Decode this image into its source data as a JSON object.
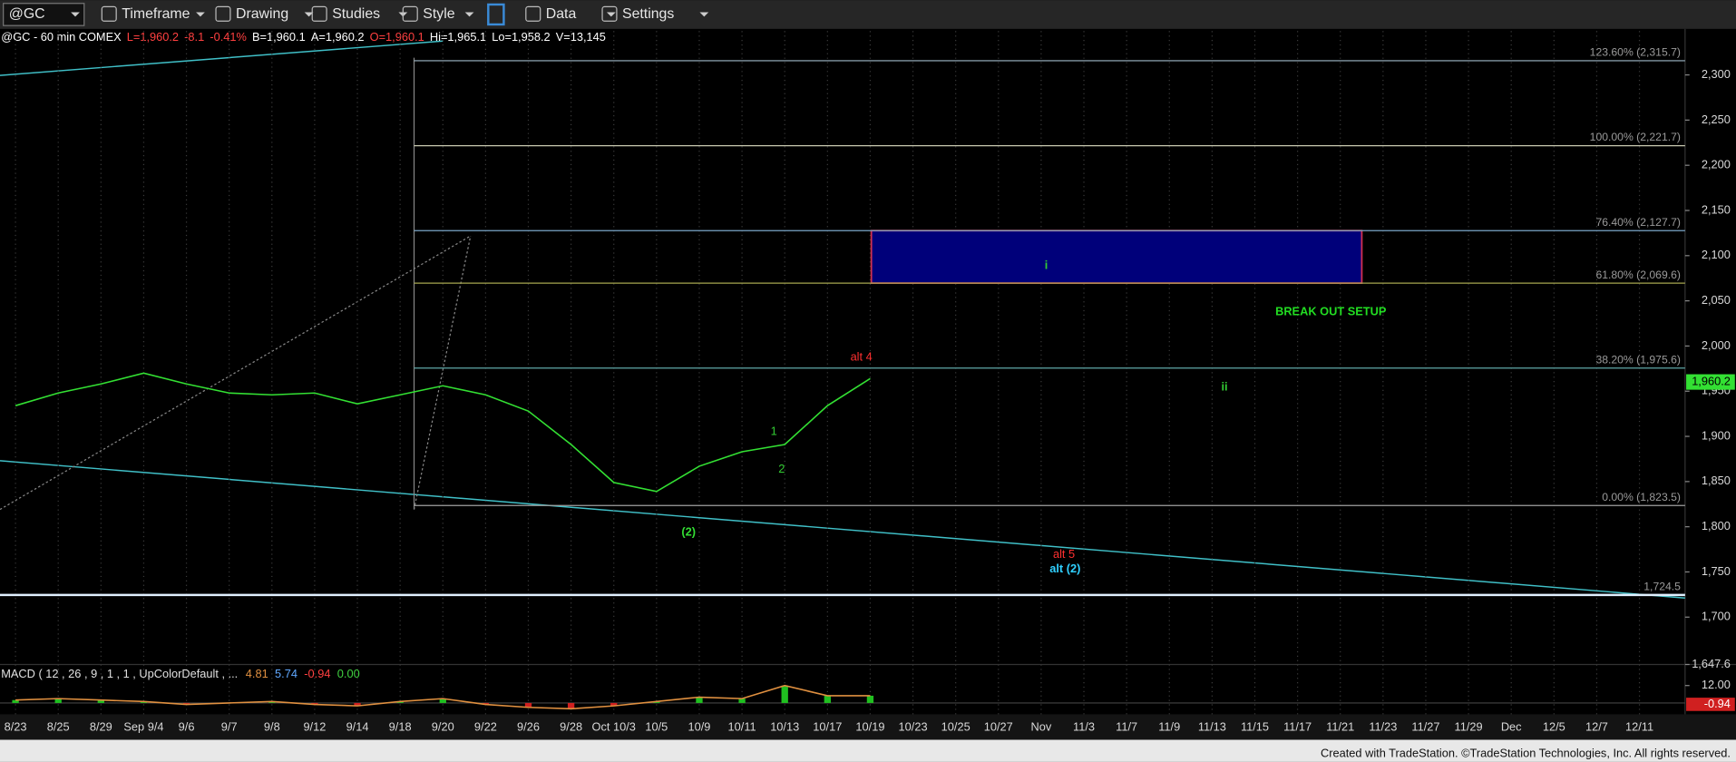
{
  "toolbar": {
    "symbol": "@GC",
    "menus": [
      "Timeframe",
      "Drawing",
      "Studies",
      "Style",
      "Data",
      "Settings"
    ]
  },
  "info_bar": [
    {
      "text": "@GC - 60 min COMEX",
      "color": "#ffffff"
    },
    {
      "text": "L=1,960.2",
      "color": "#ff4040"
    },
    {
      "text": "-8.1",
      "color": "#ff4040"
    },
    {
      "text": "-0.41%",
      "color": "#ff4040"
    },
    {
      "text": "B=1,960.1",
      "color": "#ffffff"
    },
    {
      "text": "A=1,960.2",
      "color": "#ffffff"
    },
    {
      "text": "O=1,960.1",
      "color": "#ff4040"
    },
    {
      "text": "Hi=1,965.1",
      "color": "#ffffff"
    },
    {
      "text": "Lo=1,958.2",
      "color": "#ffffff"
    },
    {
      "text": "V=13,145",
      "color": "#ffffff"
    }
  ],
  "chart_data": [
    {
      "type": "line",
      "categories": [
        "8/23",
        "8/25",
        "8/29",
        "Sep 9/4",
        "9/6",
        "9/7",
        "9/8",
        "9/12",
        "9/14",
        "9/18",
        "9/20",
        "9/22",
        "9/26",
        "9/28",
        "Oct 10/3",
        "10/5",
        "10/9",
        "10/11",
        "10/13",
        "10/17",
        "10/19",
        "10/23",
        "10/25",
        "10/27",
        "Nov",
        "11/3",
        "11/7",
        "11/9",
        "11/13",
        "11/15",
        "11/17",
        "11/21",
        "11/23",
        "11/27",
        "11/29",
        "Dec",
        "12/5",
        "12/7",
        "12/11"
      ],
      "series": [
        {
          "color": "#33e033",
          "values": [
            1934,
            1948,
            1958,
            1970,
            1958,
            1948,
            1946,
            1948,
            1936,
            1946,
            1956,
            1946,
            1928,
            1891,
            1849,
            1839,
            1867,
            1883,
            1891,
            1934,
            1964,
            null,
            null,
            null,
            null,
            null,
            null,
            null,
            null,
            null,
            null,
            null,
            null,
            null,
            null,
            null,
            null,
            null,
            null
          ]
        }
      ],
      "ylim": [
        1647.6,
        2348.5
      ],
      "yticks": [
        {
          "value": 1647.6,
          "label": "1,647.6"
        },
        {
          "value": 1700,
          "label": "1,700"
        },
        {
          "value": 1750,
          "label": "1,750"
        },
        {
          "value": 1800,
          "label": "1,800"
        },
        {
          "value": 1850,
          "label": "1,850"
        },
        {
          "value": 1900,
          "label": "1,900"
        },
        {
          "value": 1950,
          "label": "1,950"
        },
        {
          "value": 2000,
          "label": "2,000"
        },
        {
          "value": 2050,
          "label": "2,050"
        },
        {
          "value": 2100,
          "label": "2,100"
        },
        {
          "value": 2150,
          "label": "2,150"
        },
        {
          "value": 2200,
          "label": "2,200"
        },
        {
          "value": 2250,
          "label": "2,250"
        },
        {
          "value": 2300,
          "label": "2,300"
        }
      ],
      "vertical_grid": true,
      "fib_levels": [
        {
          "value": 2315.7,
          "label": "123.60% (2,315.7)",
          "color": "#9fb8c8"
        },
        {
          "value": 2221.7,
          "label": "100.00% (2,221.7)",
          "color": "#c8c8b0"
        },
        {
          "value": 2127.7,
          "label": "76.40% (2,127.7)",
          "color": "#7aa6c8"
        },
        {
          "value": 2069.6,
          "label": "61.80% (2,069.6)",
          "color": "#a6a650"
        },
        {
          "value": 1975.6,
          "label": "38.20% (1,975.6)",
          "color": "#5fa8a8"
        },
        {
          "value": 1823.5,
          "label": "0.00% (1,823.5)",
          "color": "#a0a0a0"
        }
      ],
      "support": {
        "value": 1724.5,
        "label": "1,724.5",
        "color": "#e0f0ff"
      },
      "last_price": {
        "value": 1960.2,
        "label": "1,960.2",
        "color": "#33e033"
      },
      "target_box": {
        "color": "#00007a",
        "border": "#d03050"
      },
      "annotations": [
        {
          "text": "alt 4",
          "color": "#ff3030"
        },
        {
          "text": "1",
          "color": "#33cc33"
        },
        {
          "text": "2",
          "color": "#33cc33"
        },
        {
          "text": "(2)",
          "color": "#33dd33"
        },
        {
          "text": "alt 5",
          "color": "#ff3030"
        },
        {
          "text": "alt (2)",
          "color": "#30d0ff"
        },
        {
          "text": "i",
          "color": "#33cc33"
        },
        {
          "text": "ii",
          "color": "#33cc33"
        },
        {
          "text": "BREAK OUT SETUP",
          "color": "#22dd22"
        }
      ]
    },
    {
      "type": "line",
      "title": "MACD ( 12 , 26 , 9 , 1 , 1 , UpColorDefault , ...",
      "readouts": [
        {
          "text": "4.81",
          "color": "#e09040"
        },
        {
          "text": "5.74",
          "color": "#60a8ff"
        },
        {
          "text": "-0.94",
          "color": "#ff4040"
        },
        {
          "text": "0.00",
          "color": "#40d040"
        }
      ],
      "series": [
        {
          "color": "#e09040",
          "values": [
            2,
            3,
            2,
            1,
            -1,
            0,
            1,
            -1,
            -2,
            1,
            3,
            -1,
            -3,
            -4,
            -2,
            1,
            4,
            3,
            12,
            5,
            5,
            null,
            null,
            null,
            null,
            null,
            null,
            null,
            null,
            null,
            null,
            null,
            null,
            null,
            null,
            null,
            null,
            null,
            null
          ]
        }
      ],
      "ylim": [
        -7.8,
        26.5
      ],
      "yticks": [
        {
          "value": 12,
          "label": "12.00"
        }
      ],
      "last_value": {
        "value": -0.94,
        "label": "-0.94",
        "color": "#d02020"
      }
    }
  ],
  "footer": "Created with TradeStation. ©TradeStation Technologies, Inc. All rights reserved."
}
